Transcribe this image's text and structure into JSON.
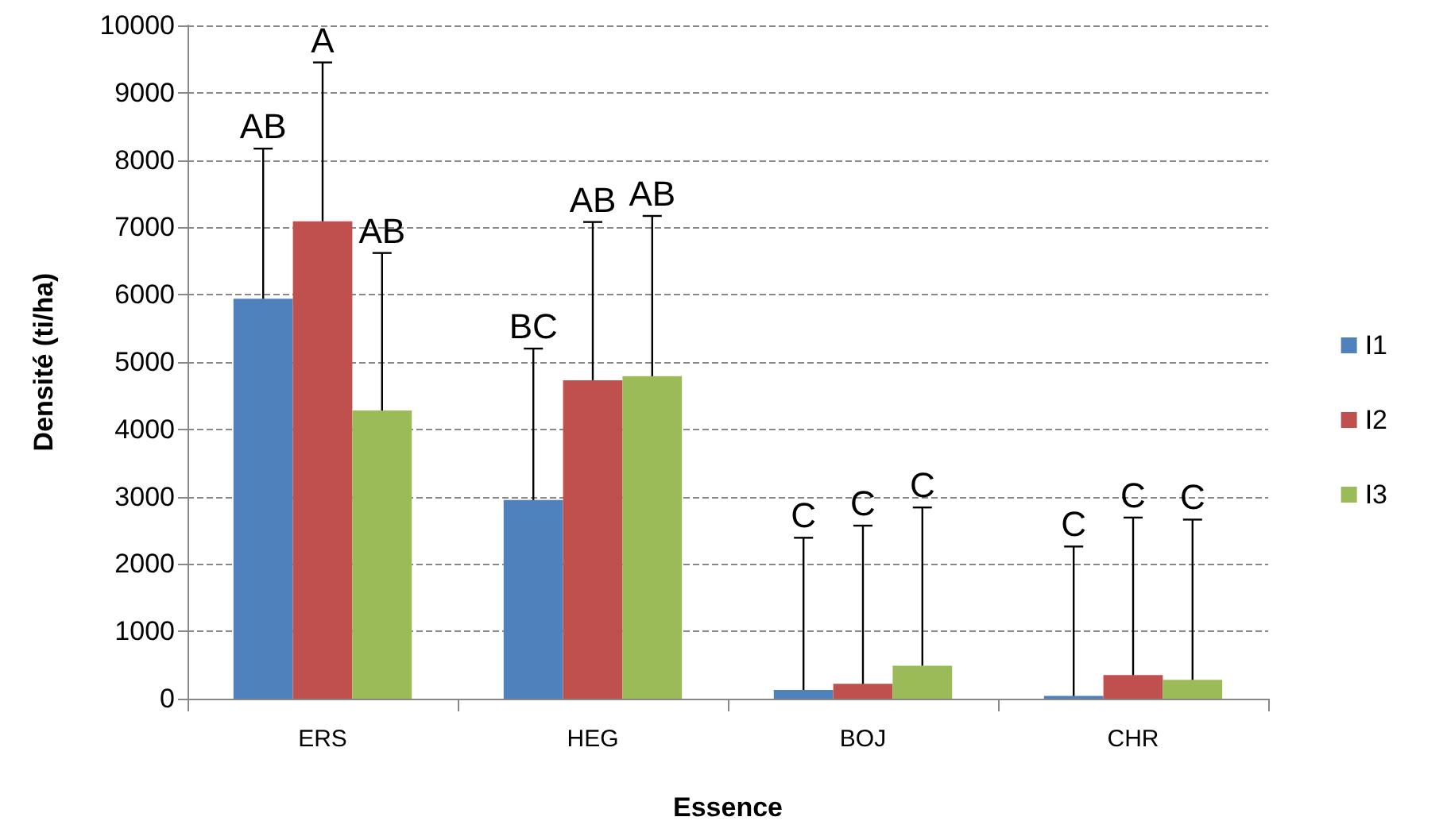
{
  "chart_data": {
    "type": "bar",
    "xlabel": "Essence",
    "ylabel": "Densité (ti/ha)",
    "categories": [
      "ERS",
      "HEG",
      "BOJ",
      "CHR"
    ],
    "series": [
      {
        "name": "I1",
        "color": "#4f81bd",
        "values": [
          5940,
          2950,
          130,
          40
        ],
        "errors": [
          [
            5940,
            8170
          ],
          [
            2950,
            5200
          ],
          [
            130,
            2390
          ],
          [
            40,
            2260
          ]
        ]
      },
      {
        "name": "I2",
        "color": "#c0504d",
        "values": [
          7090,
          4730,
          220,
          350
        ],
        "errors": [
          [
            7090,
            9450
          ],
          [
            4730,
            7080
          ],
          [
            220,
            2570
          ],
          [
            350,
            2690
          ]
        ]
      },
      {
        "name": "I3",
        "color": "#9bbb59",
        "values": [
          4280,
          4790,
          490,
          280
        ],
        "errors": [
          [
            4280,
            6620
          ],
          [
            4790,
            7170
          ],
          [
            490,
            2840
          ],
          [
            280,
            2660
          ]
        ]
      }
    ],
    "annotations": [
      "AB",
      "A",
      "AB",
      "BC",
      "AB",
      "AB",
      "C",
      "C",
      "C",
      "C",
      "C",
      "C"
    ],
    "ylim": [
      0,
      10000
    ],
    "yticks": [
      0,
      1000,
      2000,
      3000,
      4000,
      5000,
      6000,
      7000,
      8000,
      9000,
      10000
    ],
    "grid": "y",
    "legend": "right"
  }
}
